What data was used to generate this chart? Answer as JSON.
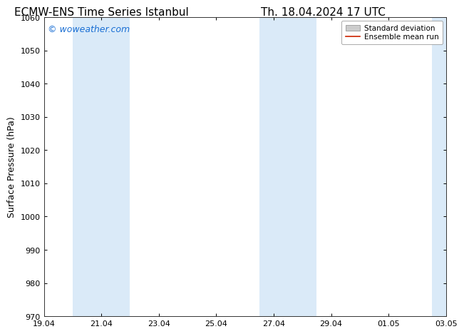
{
  "title_left": "ECMW-ENS Time Series Istanbul",
  "title_right": "Th. 18.04.2024 17 UTC",
  "ylabel": "Surface Pressure (hPa)",
  "watermark": "© woweather.com",
  "watermark_color": "#1a6fd4",
  "ylim": [
    970,
    1060
  ],
  "yticks": [
    970,
    980,
    990,
    1000,
    1010,
    1020,
    1030,
    1040,
    1050,
    1060
  ],
  "xtick_labels": [
    "19.04",
    "21.04",
    "23.04",
    "25.04",
    "27.04",
    "29.04",
    "01.05",
    "03.05"
  ],
  "xtick_positions": [
    0,
    2,
    4,
    6,
    8,
    10,
    12,
    14
  ],
  "x_total": 14,
  "shaded_bands": [
    {
      "xstart": 1.0,
      "xend": 3.0
    },
    {
      "xstart": 7.5,
      "xend": 9.5
    },
    {
      "xstart": 13.5,
      "xend": 14.0
    }
  ],
  "band_color": "#daeaf8",
  "background_color": "#ffffff",
  "legend_mean_color": "#cc2200",
  "title_fontsize": 11,
  "tick_fontsize": 8,
  "label_fontsize": 9,
  "watermark_fontsize": 9
}
